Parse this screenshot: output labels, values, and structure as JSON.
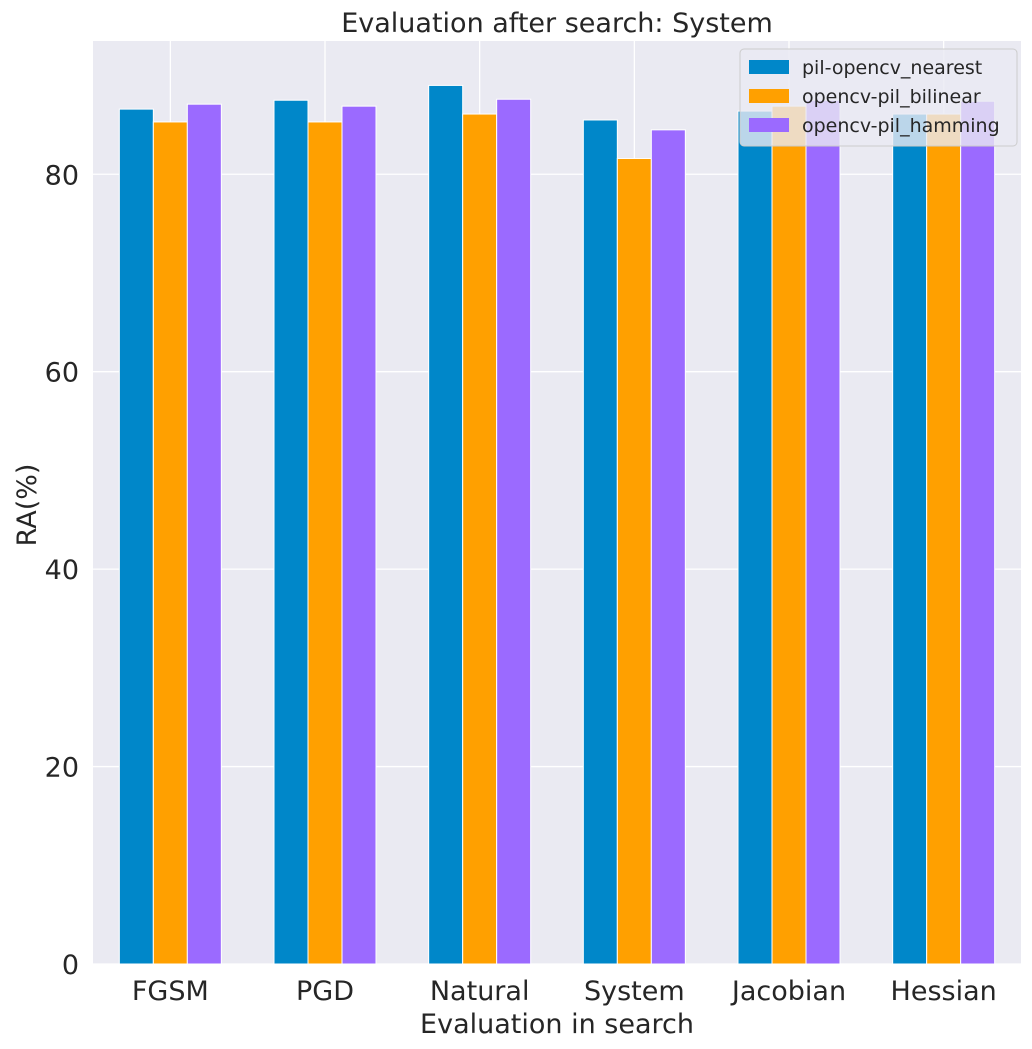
{
  "chart_data": {
    "type": "bar",
    "title": "Evaluation after search: System",
    "xlabel": "Evaluation in search",
    "ylabel": "RA(%)",
    "categories": [
      "FGSM",
      "PGD",
      "Natural",
      "System",
      "Jacobian",
      "Hessian"
    ],
    "series": [
      {
        "name": "pil-opencv_nearest",
        "color": "#0087C9",
        "values": [
          86.6,
          87.5,
          89.0,
          85.5,
          86.4,
          86.1
        ]
      },
      {
        "name": "opencv-pil_bilinear",
        "color": "#FFA000",
        "values": [
          85.3,
          85.3,
          86.1,
          81.6,
          86.9,
          86.1
        ]
      },
      {
        "name": "opencv-pil_hamming",
        "color": "#9B6AFF",
        "values": [
          87.1,
          86.9,
          87.6,
          84.5,
          87.5,
          87.4
        ]
      }
    ],
    "yticks": [
      0,
      20,
      40,
      60,
      80
    ],
    "ylim": [
      0,
      93.5
    ],
    "grid": true,
    "legend_position": "top-right",
    "background": "#EAEAF2",
    "grid_color": "#FFFFFF"
  }
}
